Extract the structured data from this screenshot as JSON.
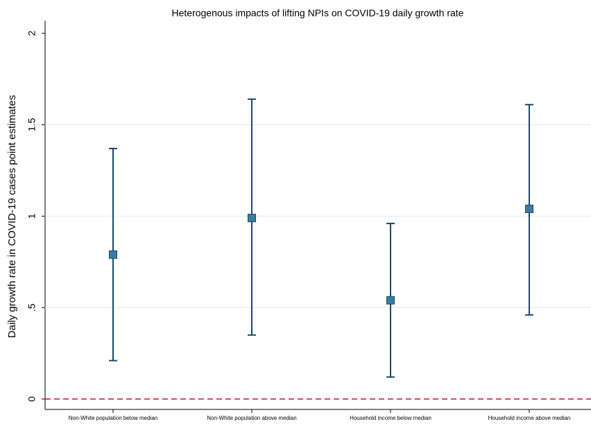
{
  "chart_data": {
    "type": "errorbar",
    "title": "Heterogenous impacts of lifting NPIs on COVID-19 daily growth rate",
    "y_label": "Daily growth rate in COVID-19 cases point estimates",
    "categories": [
      "Non-White population below median",
      "Non-White population above median",
      "Household income below median",
      "Household income above median"
    ],
    "values": [
      0.79,
      0.99,
      0.54,
      1.04
    ],
    "lower": [
      0.21,
      0.35,
      0.12,
      0.46
    ],
    "upper": [
      1.37,
      1.64,
      0.96,
      1.61
    ],
    "color": "#3a7d9b",
    "bar_color": "#1a476f",
    "ylim": [
      0,
      2
    ],
    "yticks": [
      0,
      {
        "value": 0.5,
        "label": ".5"
      },
      1,
      1.5,
      2
    ],
    "grid": true,
    "hline": 0,
    "hline_color": "#c8102e"
  }
}
